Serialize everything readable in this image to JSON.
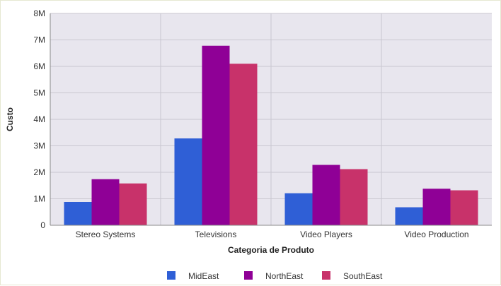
{
  "chart_data": {
    "type": "bar",
    "title": "",
    "xlabel": "Categoria de Produto",
    "ylabel": "Custo",
    "categories": [
      "Stereo Systems",
      "Televisions",
      "Video Players",
      "Video Production"
    ],
    "series": [
      {
        "name": "MidEast",
        "color": "#2f5fd6",
        "values": [
          0.88,
          3.28,
          1.21,
          0.68
        ]
      },
      {
        "name": "NorthEast",
        "color": "#8f0096",
        "values": [
          1.74,
          6.78,
          2.28,
          1.38
        ]
      },
      {
        "name": "SouthEast",
        "color": "#c8326a",
        "values": [
          1.58,
          6.1,
          2.12,
          1.32
        ]
      }
    ],
    "ylim": [
      0,
      8
    ],
    "yticks": [
      0,
      1,
      2,
      3,
      4,
      5,
      6,
      7,
      8
    ],
    "ytick_labels": [
      "0",
      "1M",
      "2M",
      "3M",
      "4M",
      "5M",
      "6M",
      "7M",
      "8M"
    ],
    "grid": true,
    "legend_position": "bottom",
    "plot_background": "#e8e6ee"
  }
}
